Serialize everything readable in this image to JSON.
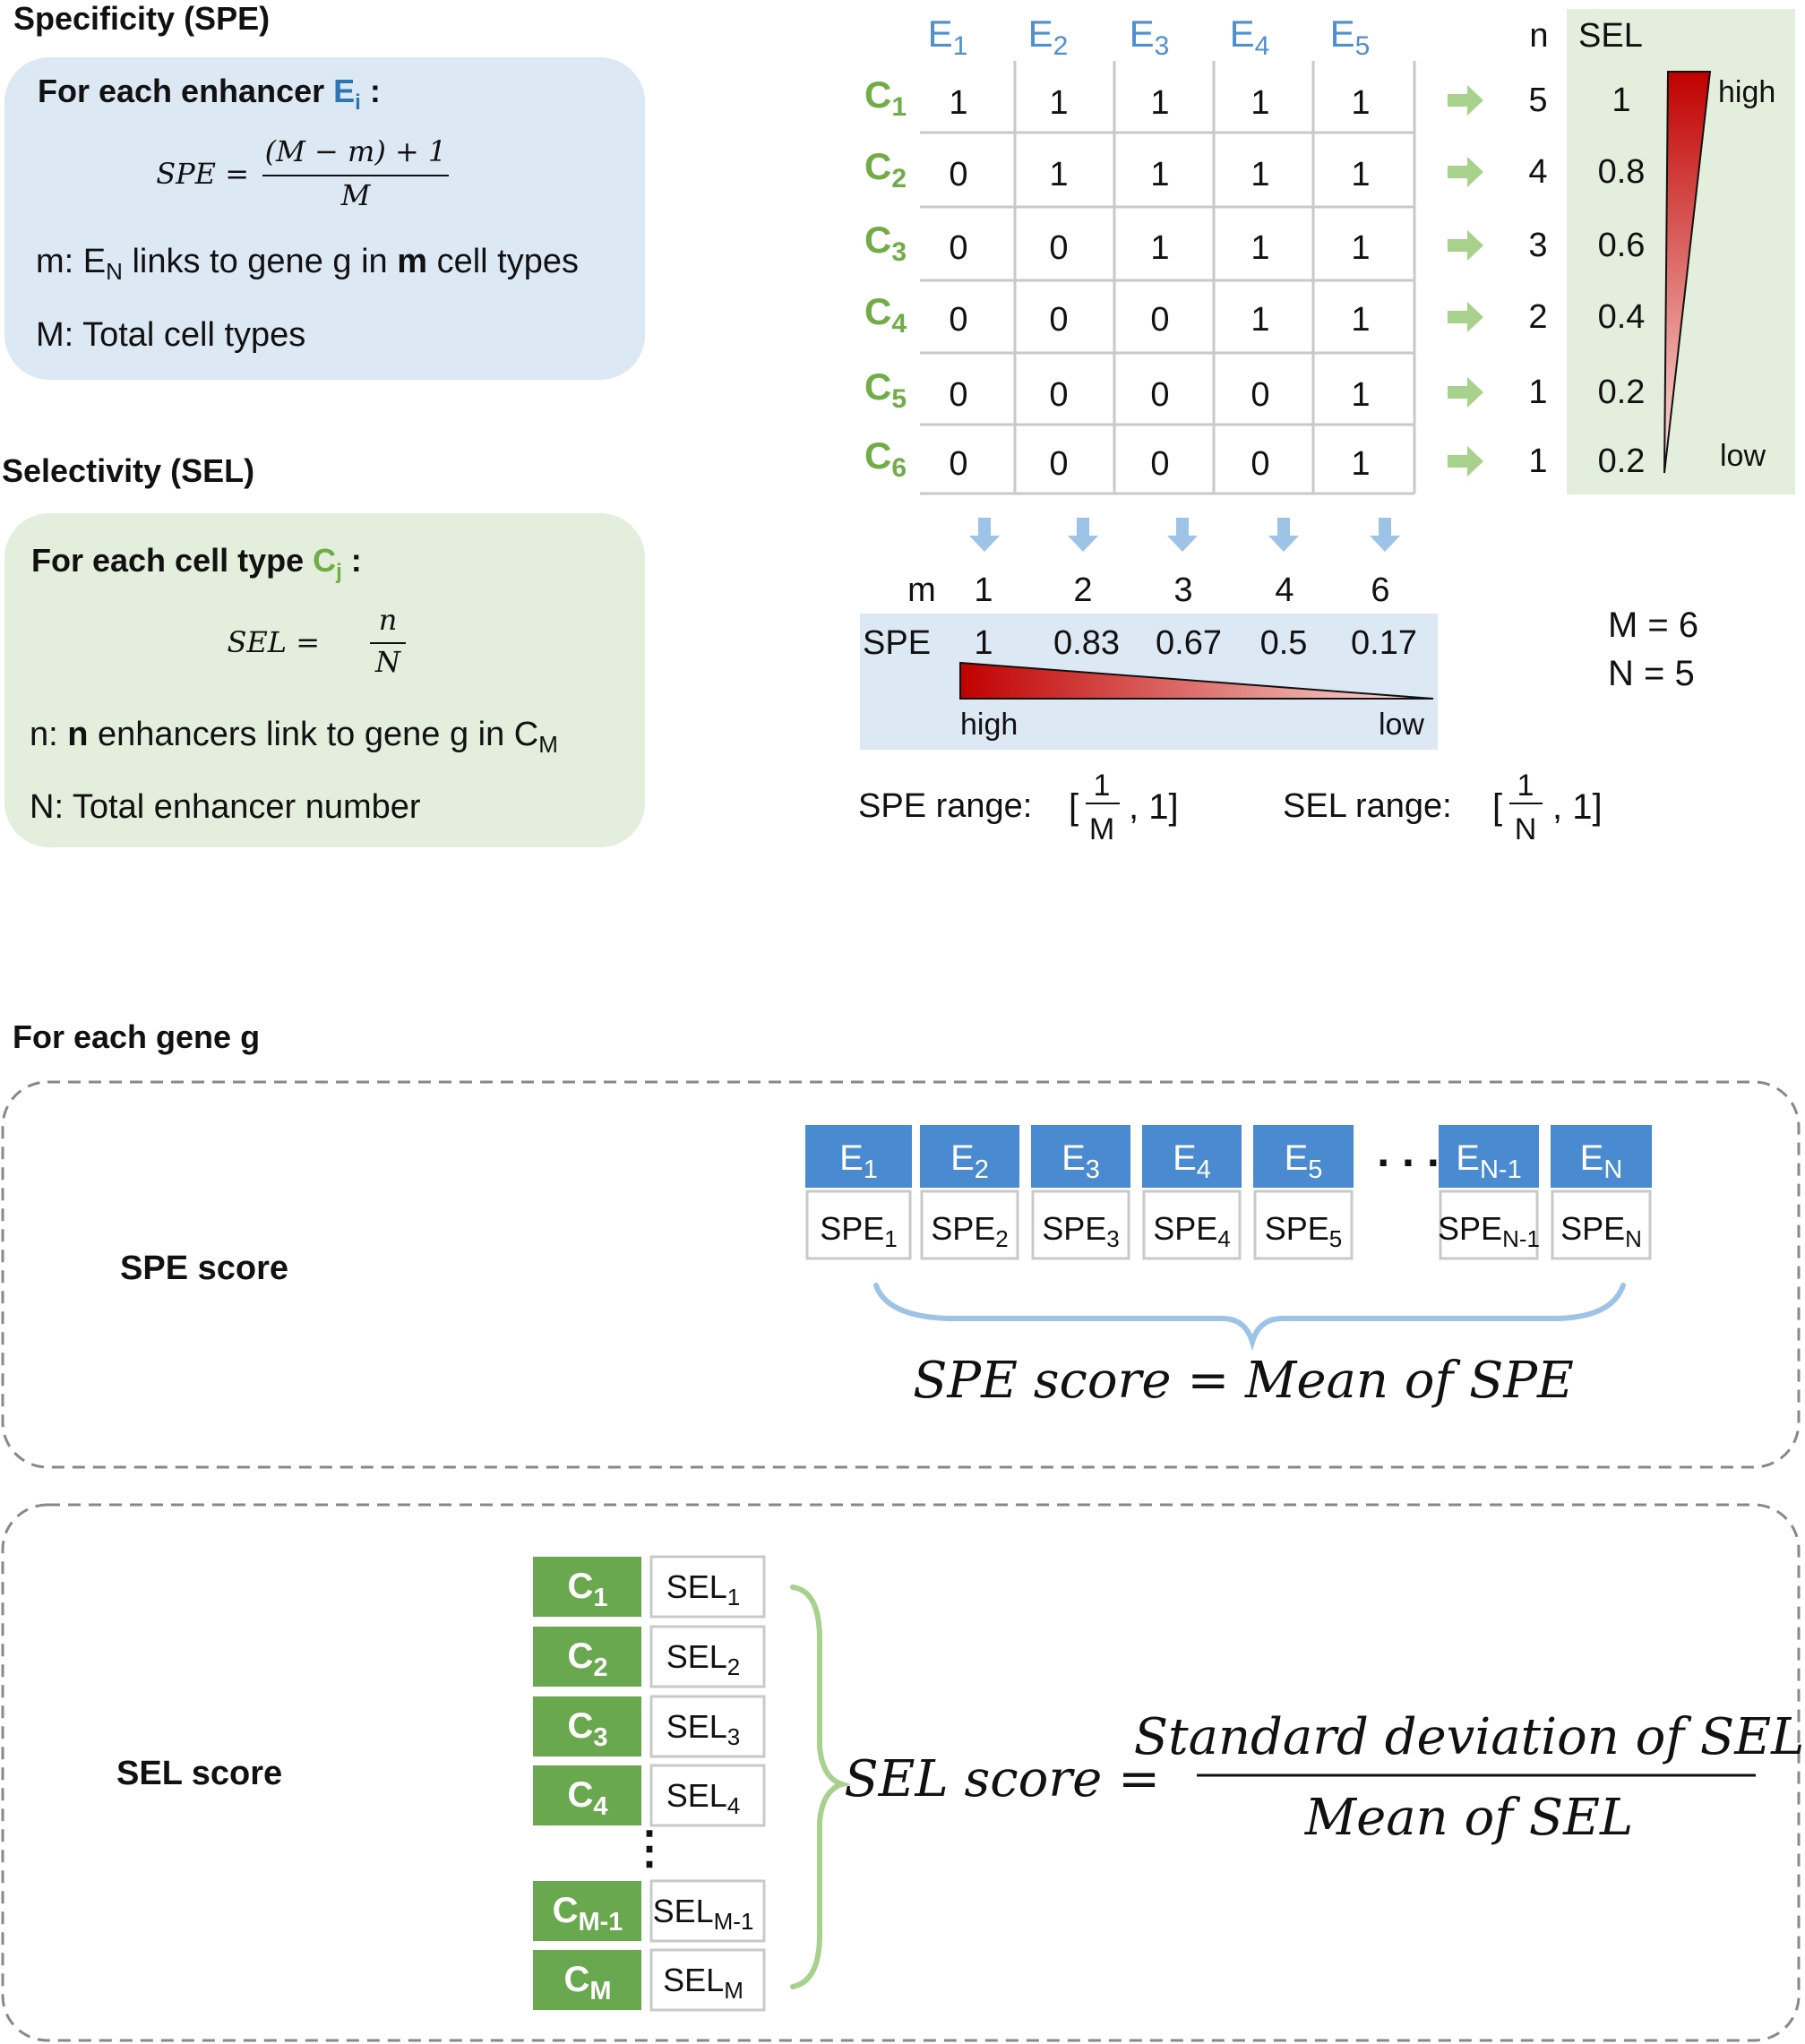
{
  "spe_panel": {
    "heading": "Specificity (SPE)",
    "box_title_prefix": "For each enhancer ",
    "box_title_symbol": "E",
    "box_title_sub": "i",
    "box_title_suffix": " :",
    "formula_lhs": "SPE =",
    "formula_num": "(M − m) + 1",
    "formula_den": "M",
    "def_m_prefix": "m: E",
    "def_m_sub": "N",
    "def_m_mid": " links to gene g in ",
    "def_m_bold": "m",
    "def_m_suffix": " cell types",
    "def_M": "M: Total cell types"
  },
  "sel_panel": {
    "heading": "Selectivity (SEL)",
    "box_title_prefix": "For each cell type ",
    "box_title_symbol": "C",
    "box_title_sub": "j",
    "box_title_suffix": " :",
    "formula_lhs": "SEL =",
    "formula_num": "n",
    "formula_den": "N",
    "def_n_prefix": "n: ",
    "def_n_bold": "n",
    "def_n_mid": " enhancers link to gene g in C",
    "def_n_sub": "M",
    "def_N": "N: Total enhancer number"
  },
  "matrix": {
    "col_headers": [
      {
        "sym": "E",
        "sub": "1"
      },
      {
        "sym": "E",
        "sub": "2"
      },
      {
        "sym": "E",
        "sub": "3"
      },
      {
        "sym": "E",
        "sub": "4"
      },
      {
        "sym": "E",
        "sub": "5"
      }
    ],
    "row_headers": [
      {
        "sym": "C",
        "sub": "1"
      },
      {
        "sym": "C",
        "sub": "2"
      },
      {
        "sym": "C",
        "sub": "3"
      },
      {
        "sym": "C",
        "sub": "4"
      },
      {
        "sym": "C",
        "sub": "5"
      },
      {
        "sym": "C",
        "sub": "6"
      }
    ],
    "cells": [
      [
        "1",
        "1",
        "1",
        "1",
        "1"
      ],
      [
        "0",
        "1",
        "1",
        "1",
        "1"
      ],
      [
        "0",
        "0",
        "1",
        "1",
        "1"
      ],
      [
        "0",
        "0",
        "0",
        "1",
        "1"
      ],
      [
        "0",
        "0",
        "0",
        "0",
        "1"
      ],
      [
        "0",
        "0",
        "0",
        "0",
        "1"
      ]
    ],
    "n_label": "n",
    "sel_label": "SEL",
    "n_values": [
      "5",
      "4",
      "3",
      "2",
      "1",
      "1"
    ],
    "sel_values": [
      "1",
      "0.8",
      "0.6",
      "0.4",
      "0.2",
      "0.2"
    ],
    "sel_high": "high",
    "sel_low": "low",
    "m_label": "m",
    "m_values": [
      "1",
      "2",
      "3",
      "4",
      "6"
    ],
    "spe_label": "SPE",
    "spe_values": [
      "1",
      "0.83",
      "0.67",
      "0.5",
      "0.17"
    ],
    "spe_high": "high",
    "spe_low": "low",
    "M_eq": "M = 6",
    "N_eq": "N = 5",
    "spe_range_label": "SPE range:",
    "spe_range_num": "1",
    "spe_range_den": "M",
    "spe_range_tail": ", 1]",
    "sel_range_label": "SEL range:",
    "sel_range_num": "1",
    "sel_range_den": "N",
    "sel_range_tail": ", 1]",
    "bracket_open": "["
  },
  "gene_section": {
    "heading": "For each gene g",
    "spe_score_label": "SPE score",
    "enhancers": [
      {
        "sym": "E",
        "sub": "1",
        "spe": "SPE",
        "spe_sub": "1"
      },
      {
        "sym": "E",
        "sub": "2",
        "spe": "SPE",
        "spe_sub": "2"
      },
      {
        "sym": "E",
        "sub": "3",
        "spe": "SPE",
        "spe_sub": "3"
      },
      {
        "sym": "E",
        "sub": "4",
        "spe": "SPE",
        "spe_sub": "4"
      },
      {
        "sym": "E",
        "sub": "5",
        "spe": "SPE",
        "spe_sub": "5"
      },
      {
        "sym": "E",
        "sub": "N-1",
        "spe": "SPE",
        "spe_sub": "N-1"
      },
      {
        "sym": "E",
        "sub": "N",
        "spe": "SPE",
        "spe_sub": "N"
      }
    ],
    "spe_ellipsis": ". . .",
    "spe_formula": "SPE score = Mean of SPE",
    "sel_score_label": "SEL score",
    "cell_types": [
      {
        "sym": "C",
        "sub": "1",
        "sel": "SEL",
        "sel_sub": "1"
      },
      {
        "sym": "C",
        "sub": "2",
        "sel": "SEL",
        "sel_sub": "2"
      },
      {
        "sym": "C",
        "sub": "3",
        "sel": "SEL",
        "sel_sub": "3"
      },
      {
        "sym": "C",
        "sub": "4",
        "sel": "SEL",
        "sel_sub": "4"
      },
      {
        "sym": "C",
        "sub": "M-1",
        "sel": "SEL",
        "sel_sub": "M-1"
      },
      {
        "sym": "C",
        "sub": "M",
        "sel": "SEL",
        "sel_sub": "M"
      }
    ],
    "sel_ellipsis": "⋮",
    "sel_formula_lhs": "SEL score =",
    "sel_formula_num": "Standard deviation of SEL",
    "sel_formula_den": "Mean of SEL"
  },
  "colors": {
    "blue_box": "#dde8f5",
    "green_box": "#e4eedc",
    "enhancer_blue": "#4f8fd0",
    "enhancer_fill": "#4a8ad0",
    "celltype_green": "#70ad47",
    "celltype_fill": "#6aa84f",
    "arrow_green": "#a9d18e",
    "arrow_blue": "#9dc3e6",
    "gradient_red": "#c00000"
  }
}
